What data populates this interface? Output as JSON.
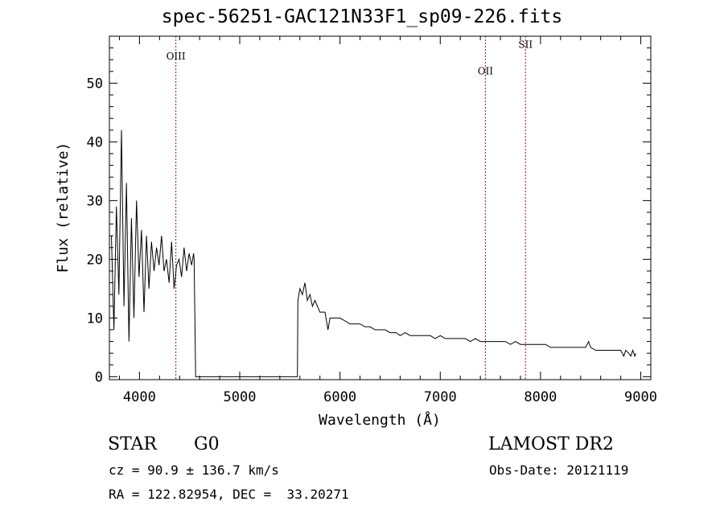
{
  "chart_data": {
    "type": "line",
    "title": "spec-56251-GAC121N33F1_sp09-226.fits",
    "xlabel": "Wavelength (Å)",
    "ylabel": "Flux (relative)",
    "xlim": [
      3700,
      9100
    ],
    "ylim": [
      -0.5,
      58
    ],
    "xticks": [
      4000,
      5000,
      6000,
      7000,
      8000,
      9000
    ],
    "yticks": [
      0,
      10,
      20,
      30,
      40,
      50
    ],
    "grid": false,
    "line_color": "#000000",
    "marker_color": "#8b1a1a",
    "lines": [
      {
        "label": "OIII",
        "x": 4363,
        "label_y": 54
      },
      {
        "label": "OII",
        "x": 7450,
        "label_y": 51.5
      },
      {
        "label": "SII",
        "x": 7850,
        "label_y": 56
      }
    ],
    "series": [
      {
        "x": [
          3720,
          3745,
          3770,
          3795,
          3820,
          3845,
          3870,
          3895,
          3920,
          3945,
          3970,
          3995,
          4020,
          4045,
          4070,
          4095,
          4120,
          4145,
          4170,
          4195,
          4220,
          4245,
          4270,
          4295,
          4320,
          4345,
          4370,
          4395,
          4420,
          4445,
          4470,
          4495,
          4520,
          4540,
          4545,
          4560,
          5000,
          5500,
          5575,
          5580,
          5600,
          5625,
          5650,
          5675,
          5700,
          5725,
          5750,
          5800,
          5850,
          5880,
          5900,
          5950,
          6000,
          6050,
          6100,
          6150,
          6200,
          6250,
          6300,
          6350,
          6400,
          6450,
          6500,
          6560,
          6600,
          6650,
          6700,
          6750,
          6800,
          6850,
          6900,
          6950,
          7000,
          7050,
          7100,
          7150,
          7200,
          7250,
          7300,
          7350,
          7400,
          7450,
          7500,
          7550,
          7600,
          7650,
          7700,
          7750,
          7800,
          7850,
          7900,
          7950,
          8000,
          8050,
          8100,
          8150,
          8200,
          8250,
          8300,
          8350,
          8400,
          8450,
          8480,
          8500,
          8550,
          8600,
          8650,
          8700,
          8750,
          8800,
          8830,
          8850,
          8880,
          8900,
          8920,
          8940,
          8950
        ],
        "values": [
          24,
          8,
          29,
          14,
          42,
          12,
          33,
          6,
          27,
          10,
          30,
          17,
          25,
          11,
          24,
          15,
          23,
          18,
          22,
          19,
          24,
          18,
          20,
          16,
          23,
          15,
          19,
          20,
          17,
          22,
          18,
          21,
          19,
          21,
          20,
          0,
          0,
          0,
          0,
          13,
          15,
          14,
          16,
          13,
          14,
          12,
          13,
          11,
          11,
          8,
          10,
          10,
          10,
          9.5,
          9,
          9,
          9,
          8.5,
          8.5,
          8,
          8,
          8,
          7.5,
          7.5,
          7,
          7.5,
          7,
          7,
          7,
          7,
          7,
          6.5,
          7,
          6.5,
          6.5,
          6.5,
          6.5,
          6.5,
          6,
          6.5,
          6,
          6,
          6,
          6,
          6,
          6,
          5.5,
          6,
          5.5,
          5.5,
          5.5,
          5.5,
          5.5,
          5.5,
          5,
          5,
          5,
          5,
          5,
          5,
          5,
          5,
          6,
          5,
          4.5,
          4.5,
          4.5,
          4.5,
          4.5,
          4.5,
          3.5,
          4.5,
          4,
          3.5,
          4.5,
          3.5,
          4
        ]
      }
    ]
  },
  "info": {
    "class_label": "STAR",
    "subclass": "G0",
    "survey": "LAMOST DR2",
    "redshift": "cz = 90.9 ± 136.7 km/s",
    "obs_date": "Obs-Date: 20121119",
    "coords": "RA = 122.82954, DEC =  33.20271"
  }
}
